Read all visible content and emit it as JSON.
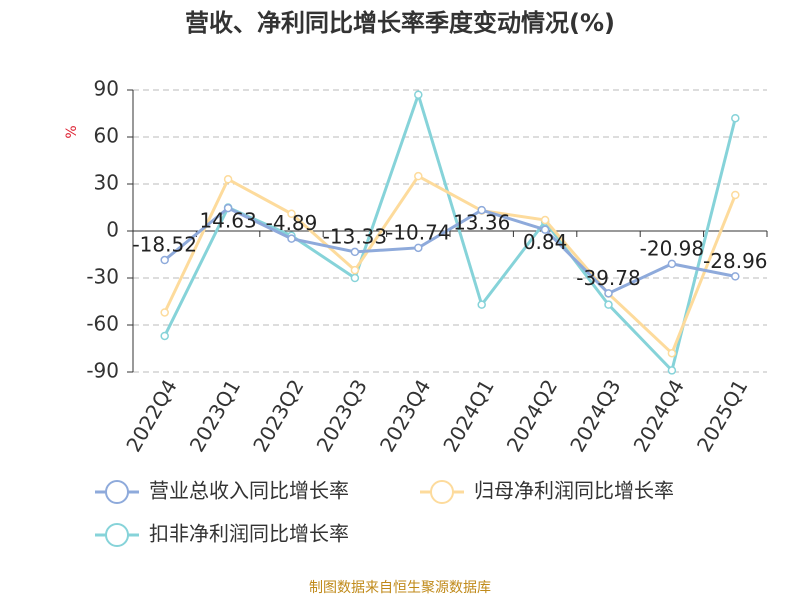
{
  "chart_data": {
    "type": "line",
    "title": "营收、净利同比增长率季度变动情况(%)",
    "y_label": "%",
    "source": "制图数据来自恒生聚源数据库",
    "categories": [
      "2022Q4",
      "2023Q1",
      "2023Q2",
      "2023Q3",
      "2023Q4",
      "2024Q1",
      "2024Q2",
      "2024Q3",
      "2024Q4",
      "2025Q1"
    ],
    "series": [
      {
        "name": "营业总收入同比增长率",
        "color": "#8eaadb",
        "values": [
          -18.52,
          14.63,
          -4.89,
          -13.33,
          -10.74,
          13.36,
          0.84,
          -39.78,
          -20.98,
          -28.96
        ],
        "show_labels": true
      },
      {
        "name": "归母净利润同比增长率",
        "color": "#fddb9c",
        "values": [
          -52,
          33,
          11,
          -25,
          35,
          13,
          7,
          -40,
          -78,
          23
        ]
      },
      {
        "name": "扣非净利润同比增长率",
        "color": "#86d3d9",
        "values": [
          -67,
          15,
          -3,
          -30,
          87,
          -47,
          6,
          -47,
          -89,
          72
        ]
      }
    ],
    "ylim": [
      -90,
      90
    ],
    "yticks": [
      -90,
      -60,
      -30,
      0,
      30,
      60,
      90
    ],
    "grid": true
  }
}
